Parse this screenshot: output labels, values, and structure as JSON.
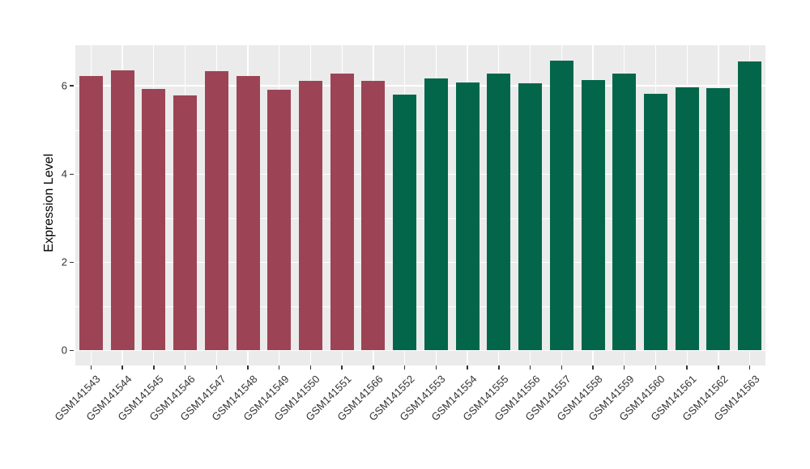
{
  "figure": {
    "background_color": "#FFFFFF",
    "panel_background_color": "#EBEBEB",
    "grid_color": "#FFFFFF",
    "axis_text_color": "#333333"
  },
  "chart_data": {
    "type": "bar",
    "title": "",
    "xlabel": "",
    "ylabel": "Expression Level",
    "categories": [
      "GSM141543",
      "GSM141544",
      "GSM141545",
      "GSM141546",
      "GSM141547",
      "GSM141548",
      "GSM141549",
      "GSM141550",
      "GSM141551",
      "GSM141566",
      "GSM141552",
      "GSM141553",
      "GSM141554",
      "GSM141555",
      "GSM141556",
      "GSM141557",
      "GSM141558",
      "GSM141559",
      "GSM141560",
      "GSM141561",
      "GSM141562",
      "GSM141563"
    ],
    "values": [
      6.22,
      6.35,
      5.93,
      5.78,
      6.33,
      6.23,
      5.91,
      6.11,
      6.27,
      6.12,
      5.8,
      6.16,
      6.07,
      6.27,
      6.05,
      6.57,
      6.13,
      6.28,
      5.82,
      5.96,
      5.94,
      6.56
    ],
    "groups": [
      0,
      0,
      0,
      0,
      0,
      0,
      0,
      0,
      0,
      0,
      1,
      1,
      1,
      1,
      1,
      1,
      1,
      1,
      1,
      1,
      1,
      1
    ],
    "group_colors": [
      "#9C4455",
      "#03664A"
    ],
    "y_major_ticks": [
      0,
      2,
      4,
      6
    ],
    "y_minor_ticks": [
      1,
      3,
      5
    ],
    "ylim": [
      -0.34,
      6.92
    ],
    "grid": true,
    "legend": "none",
    "x_label_rotation_deg": 45
  }
}
